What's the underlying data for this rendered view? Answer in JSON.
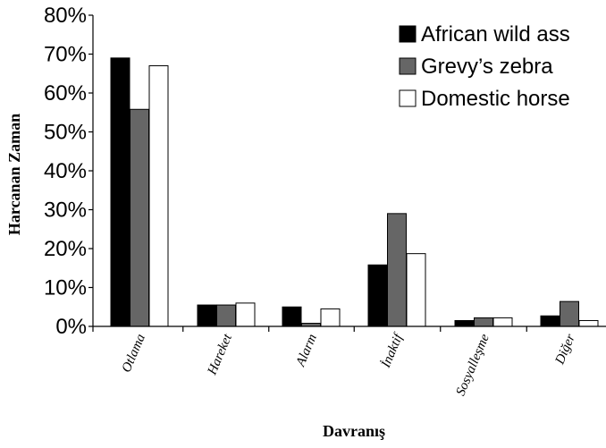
{
  "chart_data": {
    "type": "bar",
    "title": "",
    "xlabel": "Davranış",
    "ylabel": "Harcanan Zaman",
    "ylim": [
      0,
      80
    ],
    "yticks": [
      0,
      10,
      20,
      30,
      40,
      50,
      60,
      70,
      80
    ],
    "ytick_labels": [
      "0%",
      "10%",
      "20%",
      "30%",
      "40%",
      "50%",
      "60%",
      "70%",
      "80%"
    ],
    "categories": [
      "Otlama",
      "Hareket",
      "Alarm",
      "İnaktif",
      "Sosyalleşme",
      "Diğer"
    ],
    "series": [
      {
        "name": "African wild ass",
        "color": "#000000",
        "values": [
          69,
          5.5,
          5,
          15.8,
          1.5,
          2.7
        ]
      },
      {
        "name": "Grevy’s zebra",
        "color": "#666666",
        "values": [
          55.8,
          5.5,
          0.8,
          29,
          2.2,
          6.4
        ]
      },
      {
        "name": "Domestic horse",
        "color": "#ffffff",
        "values": [
          67,
          6,
          4.5,
          18.7,
          2.2,
          1.5
        ]
      }
    ],
    "grid": false,
    "legend_position": "top-right"
  }
}
